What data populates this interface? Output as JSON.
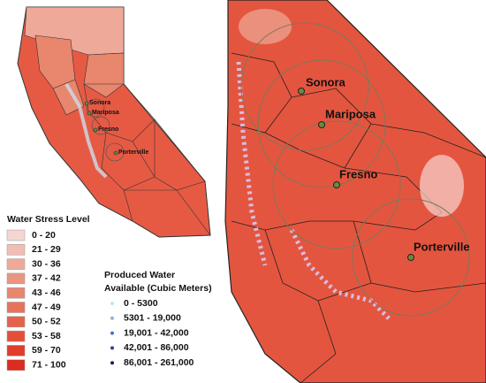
{
  "left_map": {
    "cities": [
      "Sonora",
      "Mariposa",
      "Fresno",
      "Porterville"
    ]
  },
  "right_map": {
    "cities": [
      "Sonora",
      "Mariposa",
      "Fresno",
      "Porterville"
    ]
  },
  "water_stress_legend": {
    "title": "Water Stress Level",
    "items": [
      {
        "label": "0 - 20",
        "color": "#f6d6d2"
      },
      {
        "label": "21 - 29",
        "color": "#f2bdb4"
      },
      {
        "label": "30 - 36",
        "color": "#eea999"
      },
      {
        "label": "37 - 42",
        "color": "#ea9580"
      },
      {
        "label": "43 - 46",
        "color": "#e8866e"
      },
      {
        "label": "47 - 49",
        "color": "#e6735b"
      },
      {
        "label": "50 - 52",
        "color": "#e5634b"
      },
      {
        "label": "53 - 58",
        "color": "#e3503a"
      },
      {
        "label": "59 - 70",
        "color": "#e03d2c"
      },
      {
        "label": "71 - 100",
        "color": "#dc2b20"
      }
    ]
  },
  "produced_water_legend": {
    "title": [
      "Produced Water",
      "Available (Cubic Meters)"
    ],
    "items": [
      {
        "label": "0 - 5300",
        "color": "#b8e6f2"
      },
      {
        "label": "5301 - 19,000",
        "color": "#8fb2e2"
      },
      {
        "label": "19,001 - 42,000",
        "color": "#4f6fc6"
      },
      {
        "label": "42,001 - 86,000",
        "color": "#2f3fa0"
      },
      {
        "label": "86,001 - 261,000",
        "color": "#1e1a6e"
      }
    ]
  }
}
